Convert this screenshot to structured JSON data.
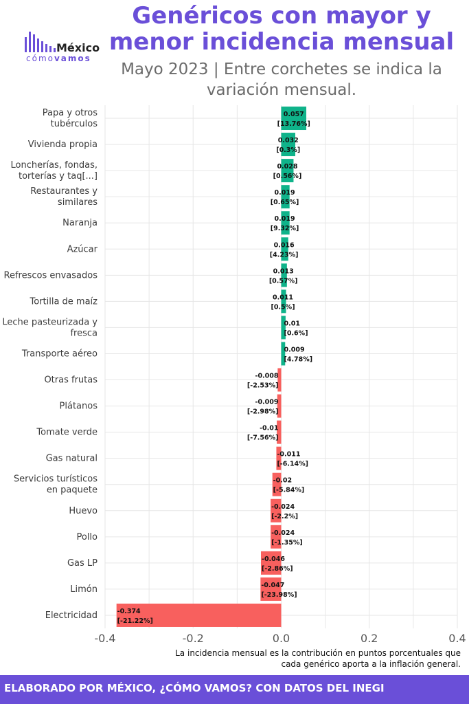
{
  "header": {
    "title_line1": "Genéricos con mayor y",
    "title_line2": "menor incidencia mensual",
    "subtitle_line1": "Mayo 2023 | Entre corchetes se indica la",
    "subtitle_line2": "variación mensual."
  },
  "logo": {
    "name": "México",
    "tag_light": "cómo",
    "tag_bold": "vamos",
    "icon": "bar-signal-icon"
  },
  "colors": {
    "accent": "#6a4fd8",
    "positive": "#0fb38a",
    "negative": "#f8605e",
    "grid": "#e6e6e6"
  },
  "note": {
    "line1": "La incidencia mensual es la contribución en puntos porcentuales que",
    "line2": "cada genérico aporta a la inflación general."
  },
  "footer": {
    "text": "ELABORADO POR MÉXICO, ¿CÓMO VAMOS? CON DATOS DEL INEGI"
  },
  "chart_data": {
    "type": "bar",
    "orientation": "horizontal",
    "xlim": [
      -0.4,
      0.4
    ],
    "xticks": [
      "-0.4",
      "-0.2",
      "0.0",
      "0.2",
      "0.4"
    ],
    "xtick_values": [
      -0.4,
      -0.2,
      0.0,
      0.2,
      0.4
    ],
    "grid": true,
    "categories": [
      [
        "Papa y otros",
        "tubérculos"
      ],
      [
        "Vivienda propia"
      ],
      [
        "Loncherías, fondas,",
        "torterías y taq[...]"
      ],
      [
        "Restaurantes y",
        "similares"
      ],
      [
        "Naranja"
      ],
      [
        "Azúcar"
      ],
      [
        "Refrescos envasados"
      ],
      [
        "Tortilla de maíz"
      ],
      [
        "Leche pasteurizada y",
        "fresca"
      ],
      [
        "Transporte aéreo"
      ],
      [
        "Otras frutas"
      ],
      [
        "Plátanos"
      ],
      [
        "Tomate verde"
      ],
      [
        "Gas natural"
      ],
      [
        "Servicios turísticos",
        "en paquete"
      ],
      [
        "Huevo"
      ],
      [
        "Pollo"
      ],
      [
        "Gas LP"
      ],
      [
        "Limón"
      ],
      [
        "Electricidad"
      ]
    ],
    "values": [
      0.057,
      0.032,
      0.028,
      0.019,
      0.019,
      0.016,
      0.013,
      0.011,
      0.01,
      0.009,
      -0.008,
      -0.009,
      -0.01,
      -0.011,
      -0.02,
      -0.024,
      -0.024,
      -0.046,
      -0.047,
      -0.374
    ],
    "value_labels": [
      "0.057",
      "0.032",
      "0.028",
      "0.019",
      "0.019",
      "0.016",
      "0.013",
      "0.011",
      "0.01",
      "0.009",
      "-0.008",
      "-0.009",
      "-0.01",
      "-0.011",
      "-0.02",
      "-0.024",
      "-0.024",
      "-0.046",
      "-0.047",
      "-0.374"
    ],
    "variation_labels": [
      "[13.76%]",
      "[0.3%]",
      "[0.56%]",
      "[0.65%]",
      "[9.32%]",
      "[4.23%]",
      "[0.57%]",
      "[0.5%]",
      "[0.6%]",
      "[4.78%]",
      "[-2.53%]",
      "[-2.98%]",
      "[-7.56%]",
      "[-6.14%]",
      "[-5.84%]",
      "[-2.2%]",
      "[-1.35%]",
      "[-2.86%]",
      "[-23.98%]",
      "[-21.22%]"
    ]
  }
}
